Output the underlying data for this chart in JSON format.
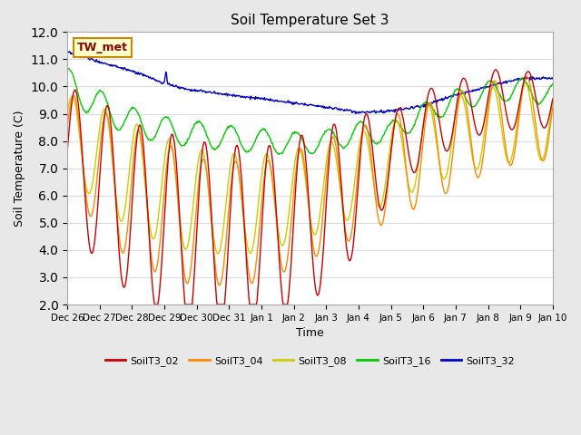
{
  "title": "Soil Temperature Set 3",
  "xlabel": "Time",
  "ylabel": "Soil Temperature (C)",
  "ylim": [
    2.0,
    12.0
  ],
  "yticks": [
    2.0,
    3.0,
    4.0,
    5.0,
    6.0,
    7.0,
    8.0,
    9.0,
    10.0,
    11.0,
    12.0
  ],
  "fig_bg": "#e8e8e8",
  "plot_bg": "#ffffff",
  "annotation_text": "TW_met",
  "series": {
    "SoilT3_02": {
      "color": "#cc0000",
      "linewidth": 1.0
    },
    "SoilT3_04": {
      "color": "#ff8800",
      "linewidth": 1.0
    },
    "SoilT3_08": {
      "color": "#cccc00",
      "linewidth": 1.0
    },
    "SoilT3_16": {
      "color": "#00cc00",
      "linewidth": 1.0
    },
    "SoilT3_32": {
      "color": "#0000cc",
      "linewidth": 1.0
    }
  },
  "xtick_labels": [
    "Dec 26",
    "Dec 27",
    "Dec 28",
    "Dec 29",
    "Dec 30",
    "Dec 31",
    "Jan 1",
    "Jan 2",
    "Jan 3",
    "Jan 4",
    "Jan 5",
    "Jan 6",
    "Jan 7",
    "Jan 8",
    "Jan 9",
    "Jan 10"
  ],
  "xtick_positions": [
    0,
    1,
    2,
    3,
    4,
    5,
    6,
    7,
    8,
    9,
    10,
    11,
    12,
    13,
    14,
    15
  ],
  "grid_color": "#dddddd",
  "legend_colors": [
    "#cc0000",
    "#ff8800",
    "#cccc00",
    "#00cc00",
    "#0000cc"
  ],
  "legend_labels": [
    "SoilT3_02",
    "SoilT3_04",
    "SoilT3_08",
    "SoilT3_16",
    "SoilT3_32"
  ]
}
